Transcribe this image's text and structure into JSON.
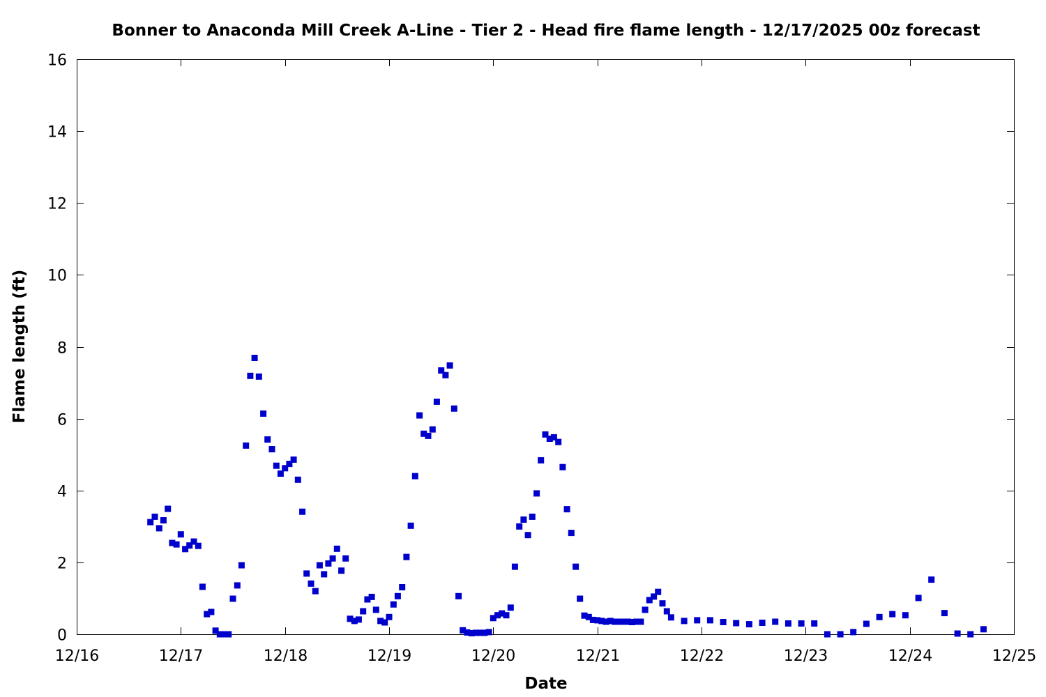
{
  "chart_data": {
    "type": "scatter",
    "title": "Bonner to Anaconda Mill Creek A-Line - Tier 2 - Head fire flame length - 12/17/2025 00z forecast",
    "xlabel": "Date",
    "ylabel": "Flame length (ft)",
    "x_ticks": [
      "12/16",
      "12/17",
      "12/18",
      "12/19",
      "12/20",
      "12/21",
      "12/22",
      "12/23",
      "12/24",
      "12/25"
    ],
    "y_ticks": [
      "0",
      "2",
      "4",
      "6",
      "8",
      "10",
      "12",
      "14",
      "16"
    ],
    "xlim": [
      0,
      9
    ],
    "ylim": [
      0,
      16
    ],
    "grid": false,
    "point_color": "#0000cc",
    "x_unit_note": "days from 12/16 00z",
    "points": [
      [
        0.708,
        3.12
      ],
      [
        0.75,
        3.27
      ],
      [
        0.792,
        2.95
      ],
      [
        0.833,
        3.17
      ],
      [
        0.875,
        3.49
      ],
      [
        0.917,
        2.54
      ],
      [
        0.958,
        2.5
      ],
      [
        1.0,
        2.78
      ],
      [
        1.042,
        2.37
      ],
      [
        1.083,
        2.47
      ],
      [
        1.125,
        2.58
      ],
      [
        1.167,
        2.46
      ],
      [
        1.208,
        1.32
      ],
      [
        1.25,
        0.56
      ],
      [
        1.292,
        0.62
      ],
      [
        1.333,
        0.1
      ],
      [
        1.375,
        0.0
      ],
      [
        1.417,
        0.0
      ],
      [
        1.458,
        0.0
      ],
      [
        1.5,
        0.99
      ],
      [
        1.542,
        1.36
      ],
      [
        1.583,
        1.92
      ],
      [
        1.625,
        5.25
      ],
      [
        1.667,
        7.19
      ],
      [
        1.708,
        7.69
      ],
      [
        1.75,
        7.17
      ],
      [
        1.792,
        6.14
      ],
      [
        1.833,
        5.42
      ],
      [
        1.875,
        5.15
      ],
      [
        1.917,
        4.69
      ],
      [
        1.958,
        4.47
      ],
      [
        2.0,
        4.62
      ],
      [
        2.042,
        4.74
      ],
      [
        2.083,
        4.86
      ],
      [
        2.125,
        4.3
      ],
      [
        2.167,
        3.41
      ],
      [
        2.208,
        1.69
      ],
      [
        2.25,
        1.41
      ],
      [
        2.292,
        1.2
      ],
      [
        2.333,
        1.92
      ],
      [
        2.375,
        1.67
      ],
      [
        2.417,
        1.97
      ],
      [
        2.458,
        2.11
      ],
      [
        2.5,
        2.38
      ],
      [
        2.542,
        1.77
      ],
      [
        2.583,
        2.11
      ],
      [
        2.625,
        0.43
      ],
      [
        2.667,
        0.37
      ],
      [
        2.708,
        0.41
      ],
      [
        2.75,
        0.64
      ],
      [
        2.792,
        0.97
      ],
      [
        2.833,
        1.04
      ],
      [
        2.875,
        0.68
      ],
      [
        2.917,
        0.37
      ],
      [
        2.958,
        0.33
      ],
      [
        3.0,
        0.48
      ],
      [
        3.042,
        0.83
      ],
      [
        3.083,
        1.06
      ],
      [
        3.125,
        1.31
      ],
      [
        3.167,
        2.15
      ],
      [
        3.208,
        3.02
      ],
      [
        3.25,
        4.4
      ],
      [
        3.292,
        6.09
      ],
      [
        3.333,
        5.58
      ],
      [
        3.375,
        5.52
      ],
      [
        3.417,
        5.7
      ],
      [
        3.458,
        6.47
      ],
      [
        3.5,
        7.34
      ],
      [
        3.542,
        7.21
      ],
      [
        3.583,
        7.48
      ],
      [
        3.625,
        6.28
      ],
      [
        3.667,
        1.06
      ],
      [
        3.708,
        0.11
      ],
      [
        3.75,
        0.05
      ],
      [
        3.792,
        0.03
      ],
      [
        3.833,
        0.04
      ],
      [
        3.875,
        0.04
      ],
      [
        3.917,
        0.04
      ],
      [
        3.958,
        0.06
      ],
      [
        4.0,
        0.45
      ],
      [
        4.042,
        0.53
      ],
      [
        4.083,
        0.58
      ],
      [
        4.125,
        0.53
      ],
      [
        4.167,
        0.74
      ],
      [
        4.208,
        1.88
      ],
      [
        4.25,
        3.0
      ],
      [
        4.292,
        3.19
      ],
      [
        4.333,
        2.76
      ],
      [
        4.375,
        3.27
      ],
      [
        4.417,
        3.92
      ],
      [
        4.458,
        4.84
      ],
      [
        4.5,
        5.56
      ],
      [
        4.542,
        5.44
      ],
      [
        4.583,
        5.48
      ],
      [
        4.625,
        5.35
      ],
      [
        4.667,
        4.65
      ],
      [
        4.708,
        3.48
      ],
      [
        4.75,
        2.82
      ],
      [
        4.792,
        1.88
      ],
      [
        4.833,
        0.99
      ],
      [
        4.875,
        0.52
      ],
      [
        4.917,
        0.48
      ],
      [
        4.958,
        0.4
      ],
      [
        5.0,
        0.39
      ],
      [
        5.042,
        0.37
      ],
      [
        5.083,
        0.35
      ],
      [
        5.125,
        0.37
      ],
      [
        5.167,
        0.35
      ],
      [
        5.208,
        0.35
      ],
      [
        5.25,
        0.35
      ],
      [
        5.292,
        0.35
      ],
      [
        5.333,
        0.34
      ],
      [
        5.375,
        0.35
      ],
      [
        5.417,
        0.35
      ],
      [
        5.458,
        0.68
      ],
      [
        5.5,
        0.95
      ],
      [
        5.542,
        1.05
      ],
      [
        5.583,
        1.18
      ],
      [
        5.625,
        0.86
      ],
      [
        5.667,
        0.64
      ],
      [
        5.708,
        0.47
      ],
      [
        5.833,
        0.37
      ],
      [
        5.958,
        0.39
      ],
      [
        6.083,
        0.39
      ],
      [
        6.208,
        0.34
      ],
      [
        6.333,
        0.31
      ],
      [
        6.458,
        0.28
      ],
      [
        6.583,
        0.32
      ],
      [
        6.708,
        0.35
      ],
      [
        6.833,
        0.3
      ],
      [
        6.958,
        0.3
      ],
      [
        7.083,
        0.3
      ],
      [
        7.208,
        0.0
      ],
      [
        7.333,
        0.0
      ],
      [
        7.458,
        0.06
      ],
      [
        7.583,
        0.29
      ],
      [
        7.708,
        0.48
      ],
      [
        7.833,
        0.56
      ],
      [
        7.958,
        0.53
      ],
      [
        8.083,
        1.01
      ],
      [
        8.208,
        1.52
      ],
      [
        8.333,
        0.59
      ],
      [
        8.458,
        0.02
      ],
      [
        8.583,
        0.0
      ],
      [
        8.708,
        0.14
      ]
    ]
  }
}
